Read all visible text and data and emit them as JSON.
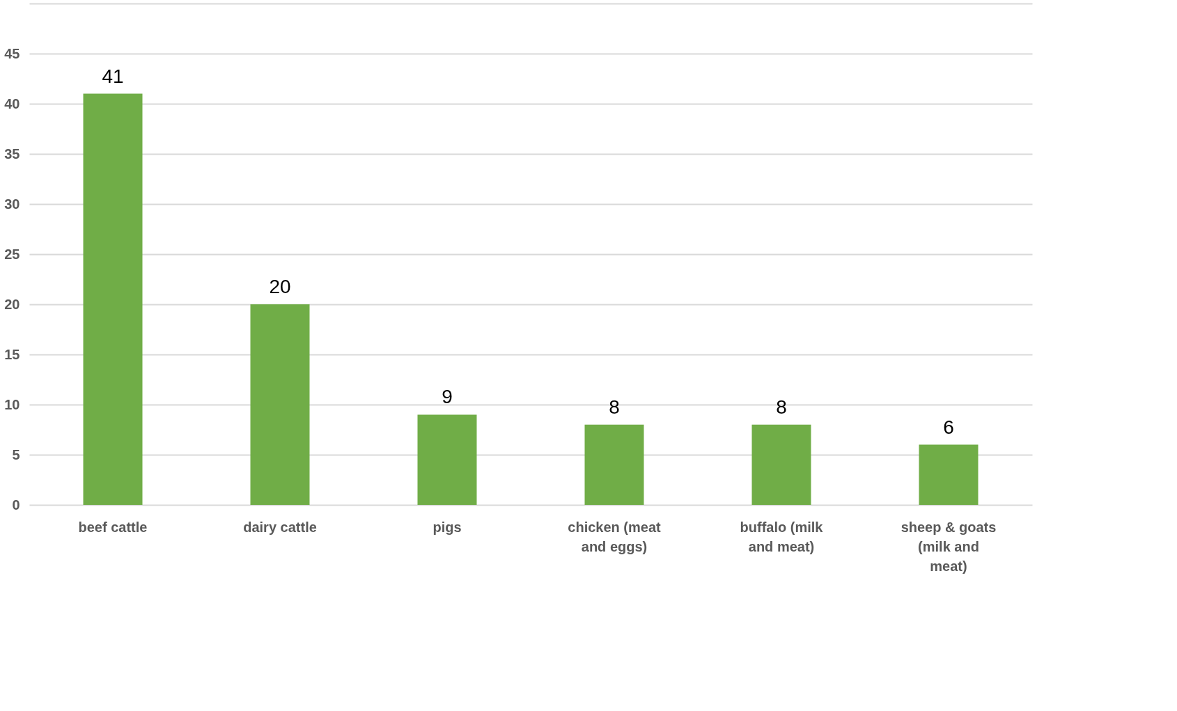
{
  "chart_data": {
    "type": "bar",
    "categories": [
      "beef cattle",
      "dairy cattle",
      "pigs",
      "chicken (meat and eggs)",
      "buffalo (milk and meat)",
      "sheep & goats (milk and meat)"
    ],
    "values": [
      41,
      20,
      9,
      8,
      8,
      6
    ],
    "color": "#70ad47",
    "ylim": [
      0,
      50
    ],
    "yticks": [
      0,
      5,
      10,
      15,
      20,
      25,
      30,
      35,
      40,
      45,
      {
        "value": 50,
        "label": null
      }
    ],
    "grid": "y",
    "data_labels": true
  }
}
